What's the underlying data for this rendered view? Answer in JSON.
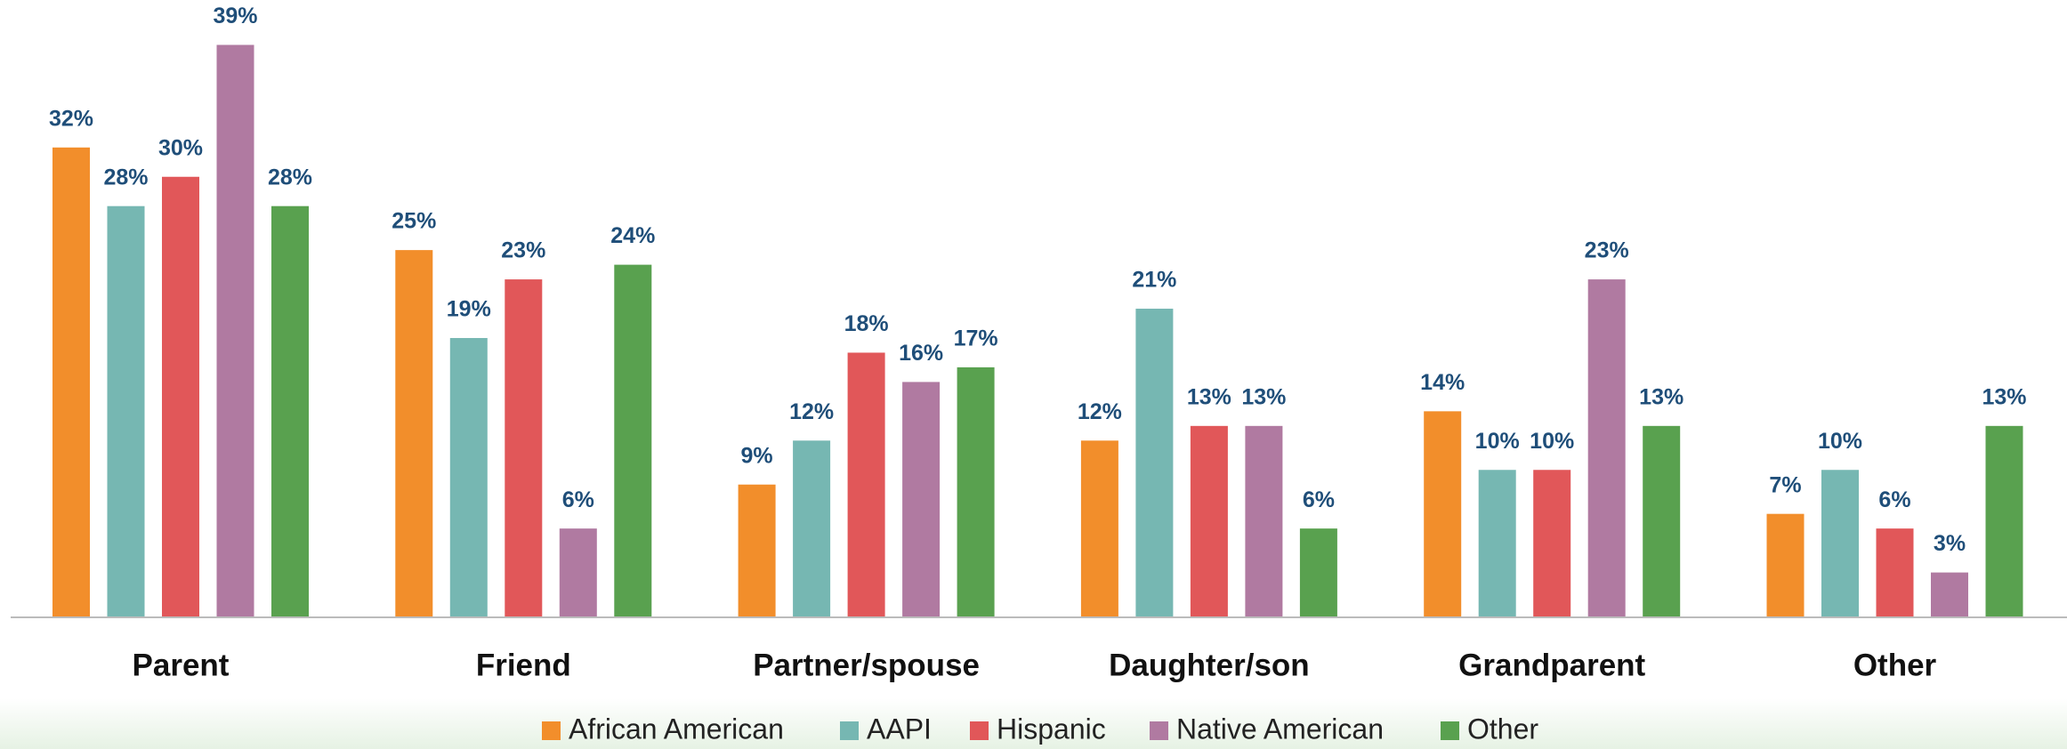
{
  "chart_data": {
    "type": "bar",
    "categories": [
      "Parent",
      "Friend",
      "Partner/spouse",
      "Daughter/son",
      "Grandparent",
      "Other"
    ],
    "series": [
      {
        "name": "African American",
        "color": "#F28E2B",
        "values": [
          32,
          25,
          9,
          12,
          14,
          7
        ],
        "value_labels": [
          "32%",
          "25%",
          "9%",
          "12%",
          "14%",
          "7%"
        ]
      },
      {
        "name": "AAPI",
        "color": "#76B7B2",
        "values": [
          28,
          19,
          12,
          21,
          10,
          10
        ],
        "value_labels": [
          "28%",
          "19%",
          "12%",
          "21%",
          "10%",
          "10%"
        ]
      },
      {
        "name": "Hispanic",
        "color": "#E15759",
        "values": [
          30,
          23,
          18,
          13,
          10,
          6
        ],
        "value_labels": [
          "30%",
          "23%",
          "18%",
          "13%",
          "10%",
          "6%"
        ]
      },
      {
        "name": "Native American",
        "color": "#B07AA1",
        "values": [
          39,
          6,
          16,
          13,
          23,
          3
        ],
        "value_labels": [
          "39%",
          "6%",
          "16%",
          "13%",
          "23%",
          "3%"
        ]
      },
      {
        "name": "Other",
        "color": "#59A14F",
        "values": [
          28,
          24,
          17,
          6,
          13,
          13
        ],
        "value_labels": [
          "28%",
          "24%",
          "17%",
          "6%",
          "13%",
          "13%"
        ]
      }
    ],
    "ylim": [
      0,
      40
    ],
    "legend": "bottom"
  }
}
